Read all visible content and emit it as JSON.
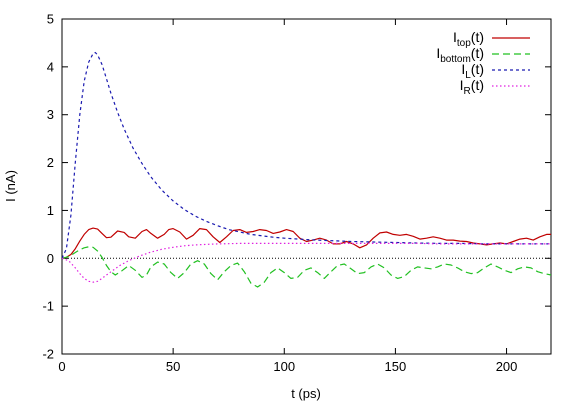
{
  "chart_data": {
    "type": "line",
    "xlabel": "t (ps)",
    "ylabel": "I (nA)",
    "xlim": [
      0,
      220
    ],
    "ylim": [
      -2,
      5
    ],
    "xticks": [
      0,
      50,
      100,
      150,
      200
    ],
    "yticks": [
      -2,
      -1,
      0,
      1,
      2,
      3,
      4,
      5
    ],
    "zero_line": true,
    "grid": false,
    "legend_position": "top-right",
    "series": [
      {
        "name": "I_top(t)",
        "label_main": "I",
        "label_sub": "top",
        "label_suffix": "(t)",
        "color": "#c00000",
        "dash": "solid",
        "x": [
          0,
          2,
          4,
          6,
          8,
          10,
          12,
          14,
          16,
          18,
          20,
          22,
          25,
          28,
          30,
          33,
          36,
          38,
          40,
          43,
          46,
          48,
          50,
          53,
          56,
          59,
          62,
          65,
          68,
          71,
          74,
          77,
          80,
          83,
          86,
          89,
          92,
          95,
          98,
          101,
          104,
          107,
          110,
          113,
          116,
          119,
          122,
          125,
          128,
          131,
          134,
          137,
          140,
          143,
          146,
          149,
          152,
          155,
          158,
          161,
          164,
          167,
          170,
          173,
          176,
          179,
          182,
          185,
          188,
          191,
          194,
          197,
          200,
          203,
          206,
          209,
          212,
          215,
          218,
          220
        ],
        "y": [
          0,
          0.02,
          0.08,
          0.2,
          0.36,
          0.5,
          0.6,
          0.63,
          0.61,
          0.52,
          0.43,
          0.44,
          0.57,
          0.54,
          0.45,
          0.42,
          0.56,
          0.6,
          0.52,
          0.42,
          0.5,
          0.6,
          0.62,
          0.55,
          0.4,
          0.48,
          0.62,
          0.6,
          0.45,
          0.33,
          0.45,
          0.58,
          0.6,
          0.54,
          0.56,
          0.6,
          0.58,
          0.52,
          0.55,
          0.6,
          0.56,
          0.42,
          0.35,
          0.38,
          0.42,
          0.38,
          0.3,
          0.3,
          0.35,
          0.3,
          0.22,
          0.28,
          0.42,
          0.53,
          0.55,
          0.5,
          0.48,
          0.5,
          0.46,
          0.4,
          0.42,
          0.45,
          0.42,
          0.38,
          0.38,
          0.36,
          0.35,
          0.32,
          0.3,
          0.28,
          0.3,
          0.32,
          0.3,
          0.35,
          0.4,
          0.42,
          0.38,
          0.45,
          0.5,
          0.5
        ]
      },
      {
        "name": "I_bottom(t)",
        "label_main": "I",
        "label_sub": "bottom",
        "label_suffix": "(t)",
        "color": "#22c022",
        "dash": "7,4",
        "x": [
          0,
          2,
          4,
          6,
          8,
          10,
          12,
          14,
          16,
          18,
          20,
          22,
          24,
          27,
          30,
          33,
          36,
          38,
          40,
          43,
          46,
          49,
          52,
          55,
          58,
          61,
          64,
          67,
          70,
          73,
          76,
          79,
          82,
          85,
          88,
          91,
          94,
          97,
          100,
          103,
          106,
          109,
          112,
          115,
          118,
          121,
          124,
          127,
          130,
          133,
          136,
          139,
          142,
          145,
          148,
          151,
          154,
          157,
          160,
          163,
          166,
          169,
          172,
          175,
          178,
          181,
          184,
          187,
          190,
          193,
          196,
          199,
          202,
          205,
          208,
          211,
          214,
          217,
          220
        ],
        "y": [
          0,
          0.02,
          0.06,
          0.12,
          0.18,
          0.22,
          0.24,
          0.23,
          0.15,
          0.02,
          -0.15,
          -0.28,
          -0.35,
          -0.26,
          -0.15,
          -0.25,
          -0.4,
          -0.35,
          -0.18,
          -0.08,
          -0.12,
          -0.3,
          -0.42,
          -0.3,
          -0.12,
          -0.05,
          -0.12,
          -0.32,
          -0.45,
          -0.28,
          -0.15,
          -0.1,
          -0.28,
          -0.52,
          -0.6,
          -0.5,
          -0.3,
          -0.2,
          -0.3,
          -0.42,
          -0.4,
          -0.25,
          -0.2,
          -0.3,
          -0.42,
          -0.28,
          -0.15,
          -0.12,
          -0.22,
          -0.32,
          -0.3,
          -0.18,
          -0.12,
          -0.2,
          -0.35,
          -0.42,
          -0.38,
          -0.25,
          -0.18,
          -0.2,
          -0.22,
          -0.18,
          -0.12,
          -0.14,
          -0.2,
          -0.28,
          -0.32,
          -0.3,
          -0.2,
          -0.12,
          -0.18,
          -0.25,
          -0.3,
          -0.22,
          -0.18,
          -0.2,
          -0.28,
          -0.32,
          -0.35
        ]
      },
      {
        "name": "I_L(t)",
        "label_main": "I",
        "label_sub": "L",
        "label_suffix": "(t)",
        "color": "#1a1ab0",
        "dash": "3,3",
        "x": [
          0,
          2,
          4,
          6,
          8,
          10,
          12,
          14,
          15,
          16,
          18,
          20,
          22,
          25,
          28,
          32,
          36,
          40,
          45,
          50,
          55,
          60,
          65,
          70,
          75,
          80,
          85,
          90,
          95,
          100,
          110,
          120,
          130,
          140,
          150,
          160,
          170,
          180,
          190,
          200,
          210,
          220
        ],
        "y": [
          0,
          0.2,
          0.9,
          2.0,
          3.0,
          3.7,
          4.1,
          4.28,
          4.3,
          4.25,
          4.05,
          3.75,
          3.45,
          3.05,
          2.7,
          2.3,
          1.98,
          1.7,
          1.42,
          1.2,
          1.02,
          0.88,
          0.77,
          0.68,
          0.6,
          0.55,
          0.5,
          0.47,
          0.44,
          0.42,
          0.39,
          0.37,
          0.35,
          0.34,
          0.33,
          0.32,
          0.31,
          0.31,
          0.3,
          0.3,
          0.3,
          0.3
        ]
      },
      {
        "name": "I_R(t)",
        "label_main": "I",
        "label_sub": "R",
        "label_suffix": "(t)",
        "color": "#e020e0",
        "dash": "1.5,2.5",
        "x": [
          0,
          3,
          6,
          8,
          10,
          12,
          14,
          16,
          18,
          20,
          23,
          26,
          30,
          35,
          40,
          45,
          50,
          55,
          60,
          70,
          80,
          90,
          100,
          110,
          120,
          130,
          140,
          150,
          160,
          170,
          180,
          190,
          200,
          210,
          220
        ],
        "y": [
          0,
          -0.05,
          -0.2,
          -0.32,
          -0.42,
          -0.48,
          -0.5,
          -0.48,
          -0.42,
          -0.35,
          -0.25,
          -0.15,
          -0.05,
          0.05,
          0.13,
          0.19,
          0.23,
          0.26,
          0.28,
          0.3,
          0.31,
          0.31,
          0.31,
          0.31,
          0.31,
          0.31,
          0.31,
          0.31,
          0.31,
          0.3,
          0.3,
          0.3,
          0.3,
          0.3,
          0.3
        ]
      }
    ]
  }
}
